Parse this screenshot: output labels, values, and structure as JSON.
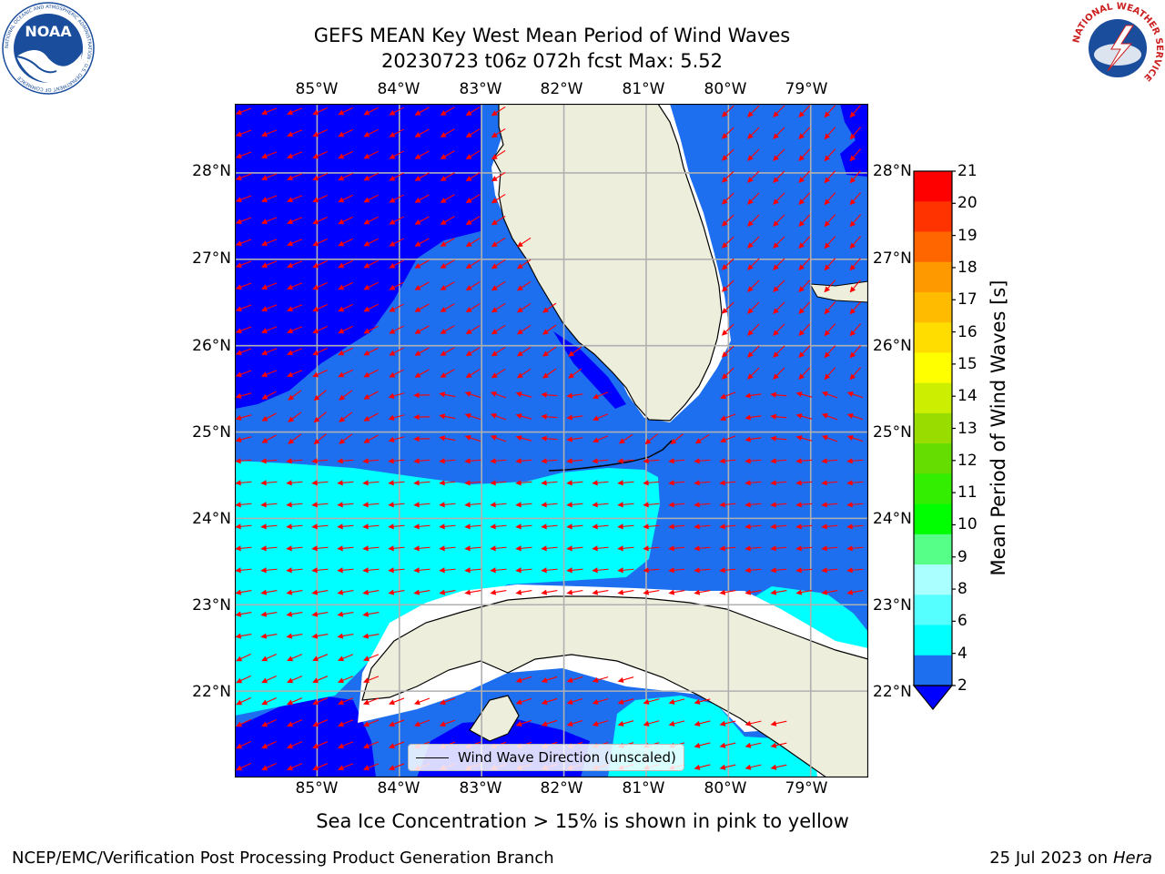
{
  "title": {
    "line1": "GEFS MEAN Key West Mean Period of Wind Waves",
    "line2": "20230723 t06z 072h fcst   Max: 5.52"
  },
  "logos": {
    "left": {
      "name": "NOAA",
      "ring_text": "NATIONAL OCEANIC AND ATMOSPHERIC ADMINISTRATION · U.S. DEPARTMENT OF COMMERCE",
      "color": "#1a4d9c"
    },
    "right": {
      "name": "NATIONAL WEATHER SERVICE",
      "color": "#cc1f1f"
    }
  },
  "map": {
    "lon_labels": [
      "85°W",
      "84°W",
      "83°W",
      "82°W",
      "81°W",
      "80°W",
      "79°W"
    ],
    "lon_values": [
      -85,
      -84,
      -83,
      -82,
      -81,
      -80,
      -79
    ],
    "lat_labels": [
      "28°N",
      "27°N",
      "26°N",
      "25°N",
      "24°N",
      "23°N",
      "22°N"
    ],
    "lat_values": [
      28,
      27,
      26,
      25,
      24,
      23,
      22
    ],
    "lon_range": [
      -86.0,
      -78.3
    ],
    "lat_range": [
      21.0,
      28.8
    ],
    "colors": {
      "ocean_2_4": "#1e6ff0",
      "ocean_lt2": "#0000ff",
      "ocean_4_6": "#00ffff",
      "land": "#eeeedd",
      "missing": "#ffffff",
      "grid": "#b0b0b0",
      "arrow": "#ff0000",
      "coast": "#000000"
    }
  },
  "colorbar": {
    "label": "Mean Period of Wind Waves [s]",
    "tick_labels": [
      "2",
      "4",
      "6",
      "8",
      "9",
      "10",
      "11",
      "12",
      "13",
      "14",
      "15",
      "16",
      "17",
      "18",
      "19",
      "20",
      "21"
    ],
    "colors": [
      "#1e6ff0",
      "#00ffff",
      "#55ffff",
      "#aaffff",
      "#55ff88",
      "#00ff00",
      "#33ee00",
      "#66dd00",
      "#99dd00",
      "#ccee00",
      "#ffff00",
      "#ffdd00",
      "#ffbb00",
      "#ff9900",
      "#ff6600",
      "#ff3300",
      "#ff0000"
    ],
    "under_color": "#0000ff"
  },
  "legend": {
    "label": "Wind Wave Direction (unscaled)"
  },
  "note": "Sea Ice Concentration > 15% is shown in pink to yellow",
  "footer": {
    "left": "NCEP/EMC/Verification Post Processing Product Generation Branch",
    "date": "25 Jul 2023 on",
    "machine": "Hera"
  }
}
